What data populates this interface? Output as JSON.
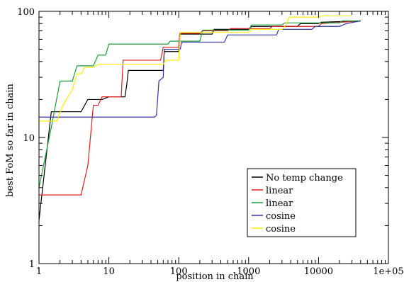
{
  "chart_data": {
    "type": "line",
    "xlabel": "position in chain",
    "ylabel": "best FoM so far in chain",
    "xscale": "log",
    "yscale": "log",
    "xlim": [
      1,
      100000
    ],
    "ylim": [
      1,
      100
    ],
    "xticks": [
      {
        "value": 1,
        "label": "1"
      },
      {
        "value": 10,
        "label": "10"
      },
      {
        "value": 100,
        "label": "100"
      },
      {
        "value": 1000,
        "label": "1000"
      },
      {
        "value": 10000,
        "label": "10000"
      },
      {
        "value": 100000,
        "label": "1e+05"
      }
    ],
    "yticks": [
      {
        "value": 1,
        "label": "1"
      },
      {
        "value": 10,
        "label": "10"
      },
      {
        "value": 100,
        "label": "100"
      }
    ],
    "grid": false,
    "legend_position": "bottom-right",
    "series": [
      {
        "name": "No temp change",
        "color": "#000000",
        "points": [
          [
            1,
            2.2
          ],
          [
            1.5,
            16
          ],
          [
            4,
            16
          ],
          [
            5,
            20
          ],
          [
            8,
            20
          ],
          [
            10,
            21
          ],
          [
            17,
            21
          ],
          [
            18,
            26
          ],
          [
            19,
            34
          ],
          [
            60,
            34
          ],
          [
            62,
            48
          ],
          [
            100,
            48
          ],
          [
            105,
            66
          ],
          [
            300,
            66
          ],
          [
            320,
            72
          ],
          [
            1000,
            72
          ],
          [
            1100,
            76
          ],
          [
            5000,
            76
          ],
          [
            5500,
            80
          ],
          [
            10000,
            80
          ],
          [
            11000,
            82
          ],
          [
            40000,
            84
          ]
        ]
      },
      {
        "name": "linear",
        "color": "#e31a1c",
        "points": [
          [
            1,
            3.5
          ],
          [
            4,
            3.5
          ],
          [
            5,
            6
          ],
          [
            6,
            18
          ],
          [
            7,
            18
          ],
          [
            8,
            21
          ],
          [
            15,
            21
          ],
          [
            16,
            41
          ],
          [
            55,
            41
          ],
          [
            60,
            52
          ],
          [
            100,
            52
          ],
          [
            103,
            67
          ],
          [
            200,
            67
          ],
          [
            220,
            70
          ],
          [
            500,
            70
          ],
          [
            550,
            73
          ],
          [
            2000,
            73
          ],
          [
            2200,
            76
          ],
          [
            10000,
            76
          ],
          [
            11000,
            80
          ],
          [
            40000,
            84
          ]
        ]
      },
      {
        "name": "linear",
        "color": "#1a9e3a",
        "points": [
          [
            1,
            4
          ],
          [
            1.5,
            12
          ],
          [
            2,
            28
          ],
          [
            3,
            28
          ],
          [
            3.5,
            37
          ],
          [
            6,
            37
          ],
          [
            7,
            45
          ],
          [
            9,
            45
          ],
          [
            10,
            55
          ],
          [
            70,
            55
          ],
          [
            75,
            58
          ],
          [
            200,
            58
          ],
          [
            220,
            71
          ],
          [
            1000,
            71
          ],
          [
            1100,
            78
          ],
          [
            3000,
            78
          ],
          [
            3300,
            81
          ],
          [
            20000,
            81
          ],
          [
            22000,
            84
          ],
          [
            40000,
            84
          ]
        ]
      },
      {
        "name": "cosine",
        "color": "#3333aa",
        "points": [
          [
            1,
            14.5
          ],
          [
            45,
            14.5
          ],
          [
            48,
            15
          ],
          [
            52,
            28
          ],
          [
            60,
            30
          ],
          [
            62,
            50
          ],
          [
            105,
            50
          ],
          [
            110,
            57
          ],
          [
            450,
            57
          ],
          [
            500,
            65
          ],
          [
            2500,
            65
          ],
          [
            2700,
            72
          ],
          [
            8000,
            72
          ],
          [
            9000,
            76
          ],
          [
            20000,
            76
          ],
          [
            25000,
            80
          ],
          [
            40000,
            84
          ]
        ]
      },
      {
        "name": "cosine",
        "color": "#ffee00",
        "points": [
          [
            1,
            13.5
          ],
          [
            1.8,
            13.5
          ],
          [
            2.2,
            18
          ],
          [
            3,
            24
          ],
          [
            3.5,
            32
          ],
          [
            4,
            32
          ],
          [
            4.5,
            36
          ],
          [
            6,
            36
          ],
          [
            7,
            38
          ],
          [
            60,
            38
          ],
          [
            65,
            41
          ],
          [
            100,
            41
          ],
          [
            105,
            68
          ],
          [
            1000,
            68
          ],
          [
            1100,
            72
          ],
          [
            3000,
            72
          ],
          [
            3400,
            78
          ],
          [
            3800,
            90
          ],
          [
            10000,
            90
          ],
          [
            11000,
            92
          ],
          [
            30000,
            92
          ]
        ]
      }
    ]
  }
}
